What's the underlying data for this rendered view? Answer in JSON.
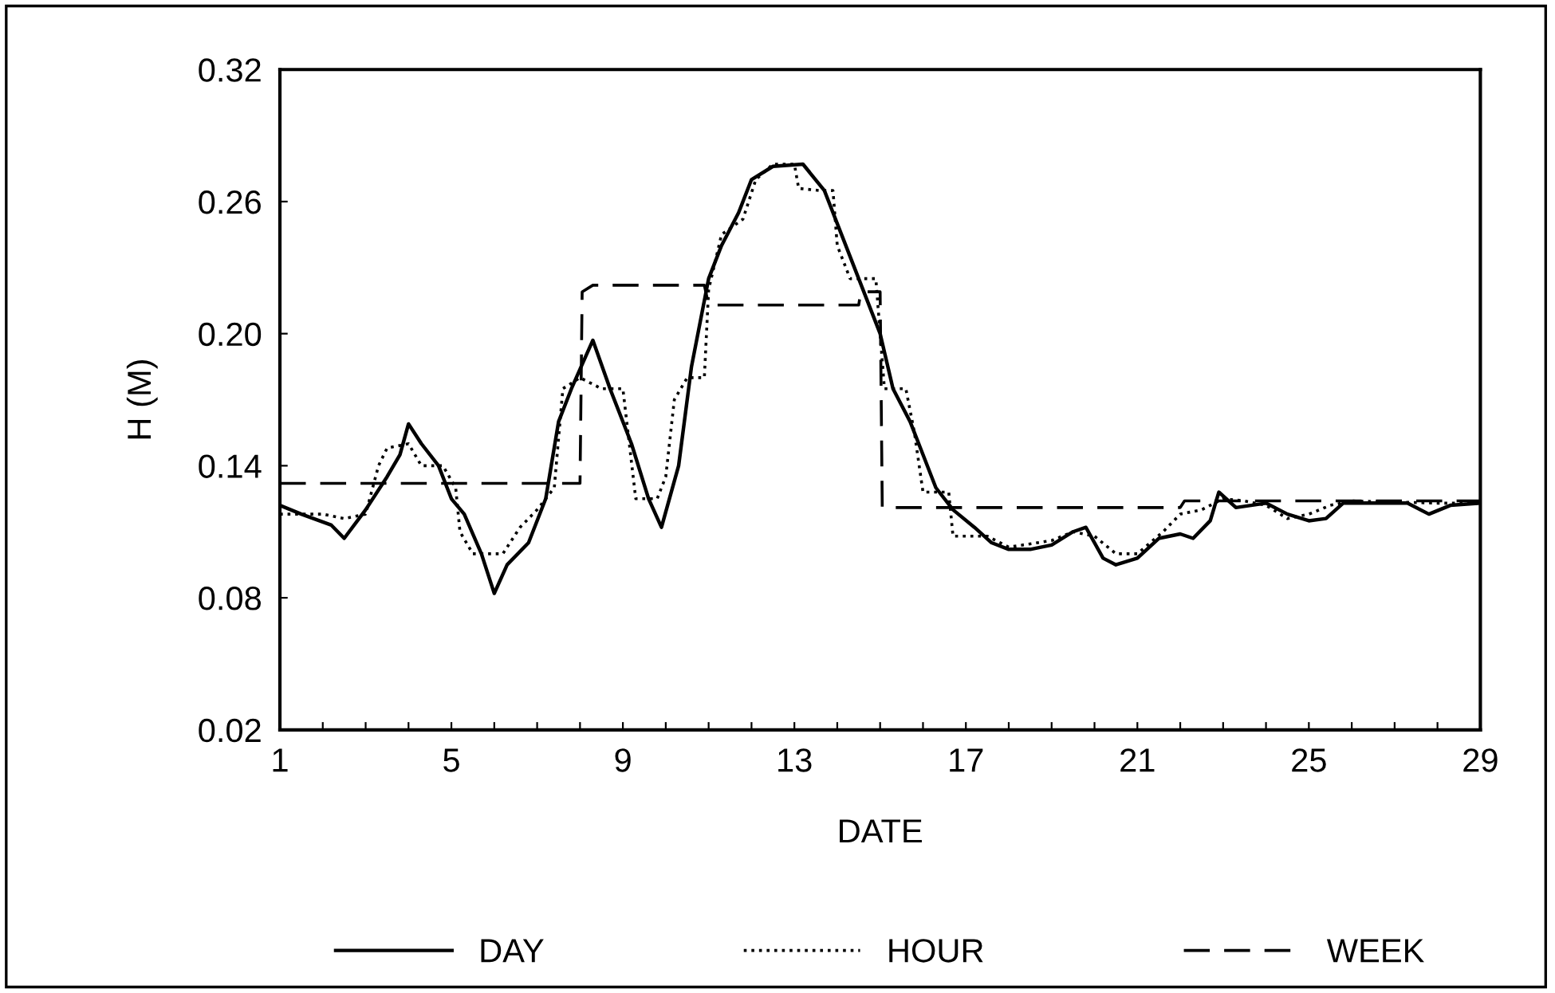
{
  "chart_data": {
    "type": "line",
    "xlabel": "DATE",
    "ylabel": "H (M)",
    "xlim": [
      1,
      29
    ],
    "ylim": [
      0.02,
      0.32
    ],
    "xticks": [
      1,
      {
        "value": 2,
        "label": null
      },
      {
        "value": 3,
        "label": null
      },
      {
        "value": 4,
        "label": null
      },
      5,
      {
        "value": 6,
        "label": null
      },
      {
        "value": 7,
        "label": null
      },
      {
        "value": 8,
        "label": null
      },
      9,
      {
        "value": 10,
        "label": null
      },
      {
        "value": 11,
        "label": null
      },
      {
        "value": 12,
        "label": null
      },
      13,
      {
        "value": 14,
        "label": null
      },
      {
        "value": 15,
        "label": null
      },
      {
        "value": 16,
        "label": null
      },
      17,
      {
        "value": 18,
        "label": null
      },
      {
        "value": 19,
        "label": null
      },
      {
        "value": 20,
        "label": null
      },
      21,
      {
        "value": 22,
        "label": null
      },
      {
        "value": 23,
        "label": null
      },
      {
        "value": 24,
        "label": null
      },
      25,
      {
        "value": 26,
        "label": null
      },
      {
        "value": 27,
        "label": null
      },
      {
        "value": 28,
        "label": null
      },
      29
    ],
    "yticks": [
      {
        "value": 0.02,
        "label": "0.02"
      },
      {
        "value": 0.08,
        "label": "0.08"
      },
      {
        "value": 0.14,
        "label": "0.14"
      },
      {
        "value": 0.2,
        "label": "0.20"
      },
      {
        "value": 0.26,
        "label": "0.26"
      },
      {
        "value": 0.32,
        "label": "0.32"
      }
    ],
    "legend": "bottom",
    "grid": false,
    "series": [
      {
        "name": "DAY",
        "color": "#000000",
        "line_style": "solid",
        "x": [
          1,
          1.5,
          2.2,
          2.5,
          3,
          3.5,
          3.8,
          4.0,
          4.3,
          4.7,
          5,
          5.3,
          5.7,
          6.0,
          6.3,
          6.8,
          7.2,
          7.5,
          7.8,
          8.3,
          8.7,
          9.2,
          9.6,
          9.9,
          10.3,
          10.6,
          11.0,
          11.3,
          11.7,
          12,
          12.5,
          13.2,
          13.7,
          14.1,
          14.5,
          15.0,
          15.3,
          15.7,
          16.0,
          16.3,
          16.7,
          17.2,
          17.6,
          18,
          18.5,
          19,
          19.5,
          19.8,
          20.2,
          20.5,
          21,
          21.5,
          22,
          22.3,
          22.7,
          22.9,
          23.3,
          24,
          24.5,
          25,
          25.4,
          25.8,
          26.5,
          27.3,
          27.8,
          28.3,
          29
        ],
        "values": [
          0.122,
          0.118,
          0.113,
          0.107,
          0.12,
          0.135,
          0.145,
          0.159,
          0.15,
          0.14,
          0.125,
          0.118,
          0.1,
          0.082,
          0.095,
          0.105,
          0.125,
          0.16,
          0.175,
          0.197,
          0.175,
          0.15,
          0.125,
          0.112,
          0.14,
          0.185,
          0.225,
          0.24,
          0.255,
          0.27,
          0.276,
          0.277,
          0.265,
          0.245,
          0.225,
          0.2,
          0.175,
          0.16,
          0.145,
          0.13,
          0.12,
          0.112,
          0.105,
          0.102,
          0.102,
          0.104,
          0.11,
          0.112,
          0.098,
          0.095,
          0.098,
          0.107,
          0.109,
          0.107,
          0.115,
          0.128,
          0.121,
          0.123,
          0.118,
          0.115,
          0.116,
          0.123,
          0.123,
          0.123,
          0.118,
          0.122,
          0.123
        ]
      },
      {
        "name": "HOUR",
        "color": "#000000",
        "line_style": "dotted",
        "x": [
          1,
          2,
          2.5,
          3,
          3.3,
          3.5,
          4,
          4.3,
          4.8,
          5.1,
          5.2,
          5.5,
          6.2,
          6.6,
          7,
          7.4,
          7.6,
          8,
          8.5,
          9,
          9.3,
          9.8,
          10,
          10.2,
          10.5,
          10.9,
          11.0,
          11.3,
          11.8,
          12.1,
          12.5,
          13,
          13.1,
          13.6,
          13.9,
          14,
          14.3,
          14.9,
          15,
          15.1,
          15.6,
          15.8,
          16,
          16.6,
          16.7,
          17.5,
          18,
          19,
          19.5,
          20,
          20.5,
          21,
          21.6,
          22,
          22.5,
          23,
          23.5,
          24,
          24.5,
          25,
          25.5,
          26,
          28,
          29
        ],
        "values": [
          0.118,
          0.118,
          0.116,
          0.118,
          0.14,
          0.148,
          0.15,
          0.14,
          0.14,
          0.13,
          0.11,
          0.1,
          0.1,
          0.112,
          0.12,
          0.13,
          0.175,
          0.18,
          0.175,
          0.175,
          0.125,
          0.125,
          0.135,
          0.17,
          0.18,
          0.18,
          0.22,
          0.245,
          0.252,
          0.27,
          0.277,
          0.277,
          0.266,
          0.265,
          0.265,
          0.24,
          0.225,
          0.225,
          0.2,
          0.175,
          0.175,
          0.155,
          0.128,
          0.128,
          0.108,
          0.108,
          0.103,
          0.106,
          0.11,
          0.108,
          0.1,
          0.1,
          0.11,
          0.118,
          0.12,
          0.125,
          0.124,
          0.122,
          0.116,
          0.118,
          0.122,
          0.124,
          0.123,
          0.123
        ]
      },
      {
        "name": "WEEK",
        "color": "#000000",
        "line_style": "dashed",
        "x": [
          1,
          8,
          8.05,
          8.3,
          10.9,
          11.0,
          14.5,
          14.55,
          15.0,
          15.05,
          22,
          22.1,
          29
        ],
        "values": [
          0.132,
          0.132,
          0.219,
          0.222,
          0.222,
          0.213,
          0.213,
          0.219,
          0.219,
          0.121,
          0.121,
          0.124,
          0.124
        ]
      }
    ]
  }
}
